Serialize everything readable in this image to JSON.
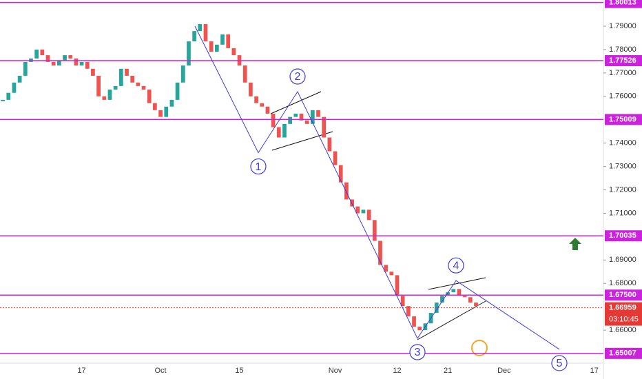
{
  "chart_data": {
    "type": "candlestick",
    "categories": [
      null,
      null,
      null,
      null,
      null,
      null,
      null,
      null,
      null,
      null,
      null,
      null,
      null,
      null,
      "17",
      null,
      null,
      null,
      null,
      null,
      null,
      null,
      null,
      null,
      null,
      null,
      null,
      null,
      "Oct",
      null,
      null,
      null,
      null,
      null,
      null,
      null,
      null,
      null,
      null,
      null,
      null,
      null,
      "15",
      null,
      null,
      null,
      null,
      null,
      null,
      null,
      null,
      null,
      null,
      null,
      null,
      null,
      null,
      null,
      null,
      "Nov",
      null,
      null,
      null,
      null,
      null,
      null,
      null,
      null,
      null,
      null,
      "12",
      null,
      null,
      null,
      null,
      null,
      null,
      null,
      null,
      "21",
      null,
      null,
      null,
      null,
      null,
      null,
      null,
      null,
      null,
      "Dec",
      null,
      null,
      null,
      null,
      null,
      null,
      null,
      null,
      null,
      null,
      null,
      null,
      null,
      null,
      null,
      "17",
      null
    ],
    "series": [
      {
        "up_color": "#26a69a",
        "down_color": "#ef5350",
        "values": [
          1.7585,
          1.7615,
          1.7659,
          1.7688,
          1.7747,
          1.7762,
          1.78,
          1.7776,
          1.7747,
          1.7732,
          1.7753,
          1.7776,
          1.7762,
          1.7732,
          1.7747,
          1.7718,
          1.7688,
          1.76,
          1.7585,
          1.7629,
          1.7644,
          1.7718,
          1.7688,
          1.7659,
          1.7644,
          1.7629,
          1.7571,
          1.7541,
          1.7512,
          1.7556,
          1.7585,
          1.7659,
          1.7732,
          1.7835,
          1.7879,
          1.7909,
          1.7835,
          1.7791,
          1.7821,
          1.7865,
          1.7806,
          1.7776,
          1.7732,
          1.7659,
          1.76,
          1.7571,
          1.7556,
          1.7526,
          1.7468,
          1.7424,
          1.7482,
          1.7512,
          1.7526,
          1.7497,
          1.7482,
          1.7541,
          1.7512,
          1.7424,
          1.7365,
          1.7306,
          1.7232,
          1.7159,
          1.7129,
          1.71,
          1.7115,
          1.7071,
          1.6982,
          1.6879,
          1.685,
          1.6835,
          1.6747,
          1.6703,
          1.6659,
          1.6615,
          1.66,
          1.6629,
          1.6674,
          1.6718,
          1.6747,
          1.6762,
          1.6776,
          1.6747,
          1.6741,
          1.6718,
          1.6703,
          null,
          null,
          null,
          null,
          null,
          null,
          null,
          null,
          null,
          null,
          null,
          null,
          null,
          null,
          null,
          null,
          null,
          null,
          null,
          null,
          null,
          null
        ]
      }
    ],
    "ylim": [
      1.6456,
      1.8012
    ],
    "yticks": [
      {
        "value": 1.66,
        "label": "1.66000"
      },
      {
        "value": 1.68,
        "label": "1.68000"
      },
      {
        "value": 1.69,
        "label": "1.69000"
      },
      {
        "value": 1.71,
        "label": "1.71000"
      },
      {
        "value": 1.72,
        "label": "1.72000"
      },
      {
        "value": 1.73,
        "label": "1.73000"
      },
      {
        "value": 1.74,
        "label": "1.74000"
      },
      {
        "value": 1.76,
        "label": "1.76000"
      },
      {
        "value": 1.77,
        "label": "1.77000"
      },
      {
        "value": 1.78,
        "label": "1.78000"
      },
      {
        "value": 1.79,
        "label": "1.79000"
      }
    ],
    "levels": {
      "color": "#cc22dd",
      "values": [
        1.80013,
        1.77526,
        1.75009,
        1.70035,
        1.675,
        1.65007
      ],
      "value_labels": [
        "1.80013",
        "1.77526",
        "1.75009",
        "1.70035",
        "1.67500",
        "1.65007"
      ]
    },
    "last_price": {
      "value": 1.66959,
      "label": "1.66959",
      "countdown": "03:10:45",
      "color": "#e53935"
    },
    "wave": {
      "color": "#3a3adf",
      "values": [
        1.79,
        1.7359,
        1.762,
        1.6565,
        1.6812,
        1.6518
      ],
      "labels": [
        null,
        "1",
        "2",
        "3",
        "4",
        "5"
      ]
    }
  }
}
